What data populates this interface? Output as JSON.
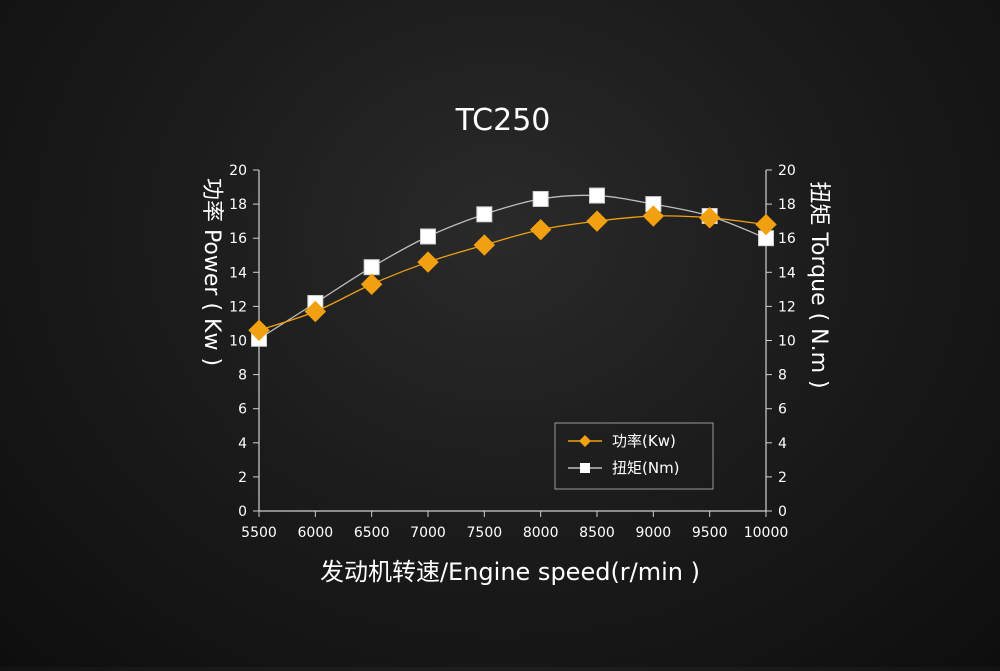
{
  "chart_data": {
    "type": "line",
    "title": "TC250",
    "xlabel": "发动机转速/Engine speed(r/min )",
    "ylabel_left": "功率 Power ( Kw )",
    "ylabel_right": "扭矩 Torque ( N.m )",
    "x": [
      5500,
      6000,
      6500,
      7000,
      7500,
      8000,
      8500,
      9000,
      9500,
      10000
    ],
    "xlim": [
      5500,
      10000
    ],
    "ylim": [
      0,
      20
    ],
    "yticks": [
      0,
      2,
      4,
      6,
      8,
      10,
      12,
      14,
      16,
      18,
      20
    ],
    "grid": false,
    "legend_position": "bottom-right",
    "series": [
      {
        "name": "功率(Kw)",
        "axis": "left",
        "marker": "diamond",
        "color": "#f0a010",
        "values": [
          10.6,
          11.7,
          13.3,
          14.6,
          15.6,
          16.5,
          17.0,
          17.3,
          17.2,
          16.8
        ]
      },
      {
        "name": "扭矩(Nm)",
        "axis": "right",
        "marker": "square",
        "color": "#ffffff",
        "line_color": "#bdbdbd",
        "values": [
          10.1,
          12.2,
          14.3,
          16.1,
          17.4,
          18.3,
          18.5,
          18.0,
          17.3,
          16.0
        ]
      }
    ]
  }
}
